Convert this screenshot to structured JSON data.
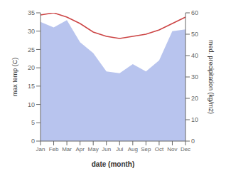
{
  "chart_data": {
    "type": "line",
    "xlabel": "date (month)",
    "ylabel": "max temp (C)",
    "y2label": "med. precipitation (kg/m2)",
    "categories": [
      "Jan",
      "Feb",
      "Mar",
      "Apr",
      "May",
      "Jun",
      "Jul",
      "Aug",
      "Sep",
      "Oct",
      "Nov",
      "Dec"
    ],
    "series": [
      {
        "type": "area",
        "color": "#b8c4ee",
        "values": [
          32.5,
          31.0,
          33.0,
          27.0,
          24.0,
          19.0,
          18.5,
          21.0,
          19.0,
          22.0,
          30.0,
          30.5
        ]
      },
      {
        "type": "line",
        "axis": "y2",
        "color": "#cc4444",
        "values": [
          59,
          60,
          58,
          55,
          51,
          49,
          48,
          49,
          50,
          52,
          55,
          58
        ]
      }
    ],
    "ylim": [
      0,
      35
    ],
    "yticks": [
      0,
      5,
      10,
      15,
      20,
      25,
      30,
      35
    ],
    "y2lim": [
      0,
      60
    ],
    "y2ticks": [
      0,
      10,
      20,
      30,
      40,
      50,
      60
    ],
    "grid": false
  }
}
